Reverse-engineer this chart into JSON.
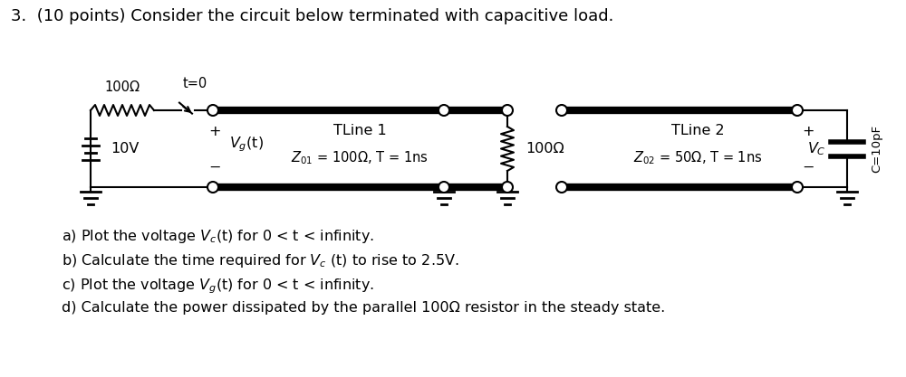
{
  "title": "3.  (10 points) Consider the circuit below terminated with capacitive load.",
  "bg_color": "#ffffff",
  "text_color": "#000000",
  "resistor_label": "100Ω",
  "switch_label": "t=0",
  "source_label": "10V",
  "vg_label": "V_g(t)",
  "tline1_label": "TLine 1",
  "tline1_params": "Z_{01} = 100Ω, T = 1ns",
  "junction_resistor": "100Ω",
  "tline2_label": "TLine 2",
  "tline2_params": "Z_{02} = 50Ω, T = 1ns",
  "vc_label": "V_C",
  "cap_label": "C=10pF",
  "q_a": "a) Plot the voltage V",
  "q_a2": "c",
  "q_a3": "(t) for 0 < t < infinity.",
  "q_b": "b) Calculate the time required for V",
  "q_b2": "c",
  "q_b3": " (t) to rise to 2.5V.",
  "q_c": "c) Plot the voltage V",
  "q_c2": "g",
  "q_c3": "(t) for 0 < t < infinity.",
  "q_d": "d) Calculate the power dissipated by the parallel 100Ω resistor in the steady state."
}
